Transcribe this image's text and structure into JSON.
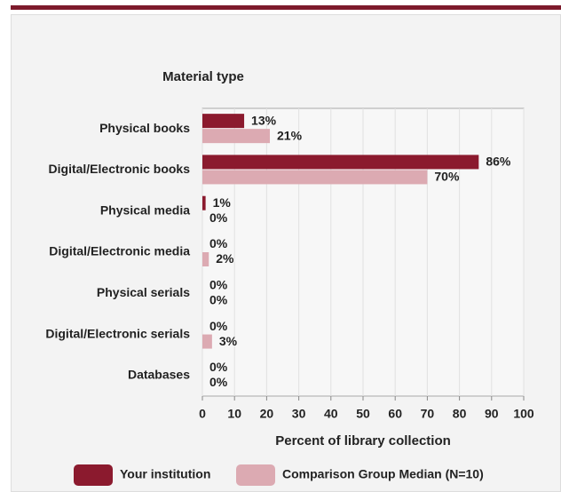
{
  "chart_data": {
    "type": "hbar",
    "y_label": "Material type",
    "x_label": "Percent of library collection",
    "categories": [
      "Physical books",
      "Digital/Electronic books",
      "Physical media",
      "Digital/Electronic media",
      "Physical serials",
      "Digital/Electronic serials",
      "Databases"
    ],
    "series": [
      {
        "name": "Your institution",
        "color": "#8b1a2e",
        "values": [
          13,
          86,
          1,
          0,
          0,
          0,
          0
        ],
        "value_labels": [
          "13%",
          "86%",
          "1%",
          "0%",
          "0%",
          "0%",
          "0%"
        ]
      },
      {
        "name": "Comparison Group Median (N=10)",
        "color": "#dcaab2",
        "values": [
          21,
          70,
          0,
          2,
          0,
          3,
          0
        ],
        "value_labels": [
          "21%",
          "70%",
          "0%",
          "2%",
          "0%",
          "3%",
          "0%"
        ]
      }
    ],
    "xlim": [
      0,
      100
    ],
    "xticks": [
      0,
      10,
      20,
      30,
      40,
      50,
      60,
      70,
      80,
      90,
      100
    ],
    "grid": true
  }
}
